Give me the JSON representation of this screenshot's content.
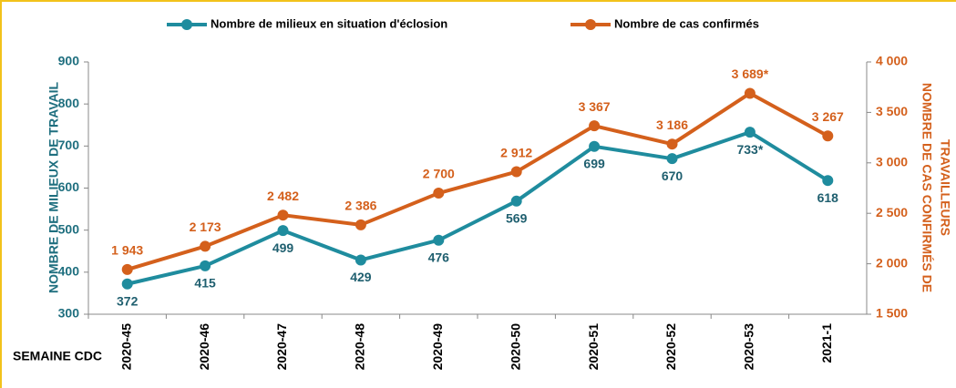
{
  "chart_data": {
    "type": "line",
    "categories": [
      "2020-45",
      "2020-46",
      "2020-47",
      "2020-48",
      "2020-49",
      "2020-50",
      "2020-51",
      "2020-52",
      "2020-53",
      "2021-1"
    ],
    "series": [
      {
        "name": "Nombre de milieux en situation d'éclosion",
        "color": "#1f8c9e",
        "values": [
          372,
          415,
          499,
          429,
          476,
          569,
          699,
          670,
          733,
          618
        ],
        "value_labels": [
          "372",
          "415",
          "499",
          "429",
          "476",
          "569",
          "699",
          "670",
          "733*",
          "618"
        ]
      },
      {
        "name": "Nombre de cas confirmés",
        "color": "#d4601c",
        "axis": "y2",
        "values": [
          1943,
          2173,
          2482,
          2386,
          2700,
          2912,
          3367,
          3186,
          3689,
          3267
        ],
        "value_labels": [
          "1 943",
          "2 173",
          "2 482",
          "2 386",
          "2 700",
          "2 912",
          "3 367",
          "3 186",
          "3 689*",
          "3 267"
        ]
      }
    ],
    "ylabel": "NOMBRE DE MILIEUX DE TRAVAIL",
    "y2label": [
      "NOMBRE DE CAS CONFIRMÉS DE",
      "TRAVAILLEURS"
    ],
    "xlabel": "SEMAINE CDC",
    "ylim": [
      300,
      900
    ],
    "yticks": [
      300,
      400,
      500,
      600,
      700,
      800,
      900
    ],
    "y2lim": [
      1500,
      4000
    ],
    "y2ticks": [
      {
        "value": 1500,
        "label": "1 500"
      },
      {
        "value": 2000,
        "label": "2 000"
      },
      {
        "value": 2500,
        "label": "2 500"
      },
      {
        "value": 3000,
        "label": "3 000"
      },
      {
        "value": 3500,
        "label": "3 500"
      },
      {
        "value": 4000,
        "label": "4 000"
      }
    ],
    "grid": false,
    "legend": "top"
  }
}
